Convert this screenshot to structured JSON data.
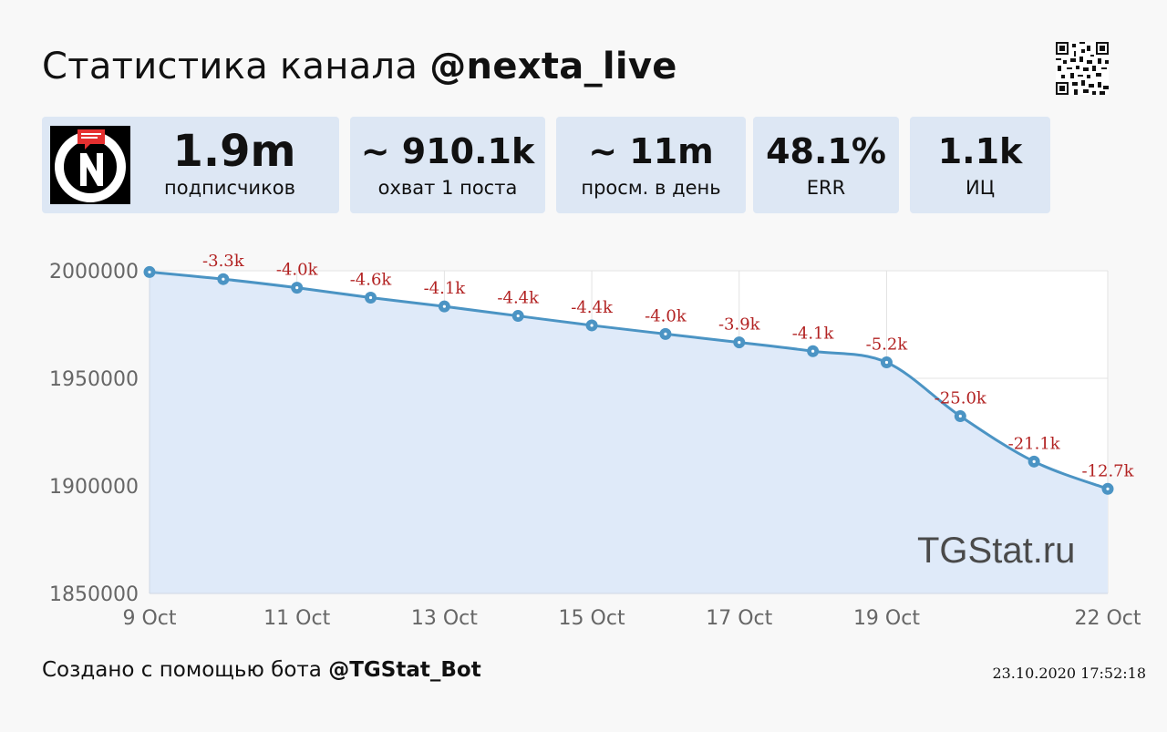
{
  "header": {
    "title_prefix": "Статистика канала ",
    "channel": "@nexta_live"
  },
  "stats": [
    {
      "value": "1.9m",
      "label": "подписчиков"
    },
    {
      "value": "~ 910.1k",
      "label": "охват 1 поста"
    },
    {
      "value": "~ 11m",
      "label": "просм. в день"
    },
    {
      "value": "48.1%",
      "label": "ERR"
    },
    {
      "value": "1.1k",
      "label": "ИЦ"
    }
  ],
  "logo_icon": "nexta-logo-icon",
  "qr_icon": "qr-code-icon",
  "watermark": "TGStat.ru",
  "footer": {
    "prefix": "Создано с помощью бота ",
    "bot": "@TGStat_Bot",
    "timestamp": "23.10.2020 17:52:18"
  },
  "colors": {
    "line": "#4b94c4",
    "area": "#dfeaf9",
    "annotation": "#b22222",
    "card": "#dde7f4"
  },
  "chart_data": {
    "type": "area",
    "x": [
      "9 Oct",
      "10 Oct",
      "11 Oct",
      "12 Oct",
      "13 Oct",
      "14 Oct",
      "15 Oct",
      "16 Oct",
      "17 Oct",
      "18 Oct",
      "19 Oct",
      "20 Oct",
      "21 Oct",
      "22 Oct"
    ],
    "values": [
      1999400,
      1996100,
      1992100,
      1987500,
      1983400,
      1979000,
      1974600,
      1970600,
      1966700,
      1962600,
      1957400,
      1932400,
      1911300,
      1898600
    ],
    "annotations": [
      null,
      "-3.3k",
      "-4.0k",
      "-4.6k",
      "-4.1k",
      "-4.4k",
      "-4.4k",
      "-4.0k",
      "-3.9k",
      "-4.1k",
      "-5.2k",
      "-25.0k",
      "-21.1k",
      "-12.7k"
    ],
    "xtick_labels": [
      "9 Oct",
      "11 Oct",
      "13 Oct",
      "15 Oct",
      "17 Oct",
      "19 Oct",
      "22 Oct"
    ],
    "xtick_index": [
      0,
      2,
      4,
      6,
      8,
      10,
      13
    ],
    "yticks": [
      1850000,
      1900000,
      1950000,
      2000000
    ],
    "ylim": [
      1850000,
      2000000
    ],
    "grid": true
  }
}
